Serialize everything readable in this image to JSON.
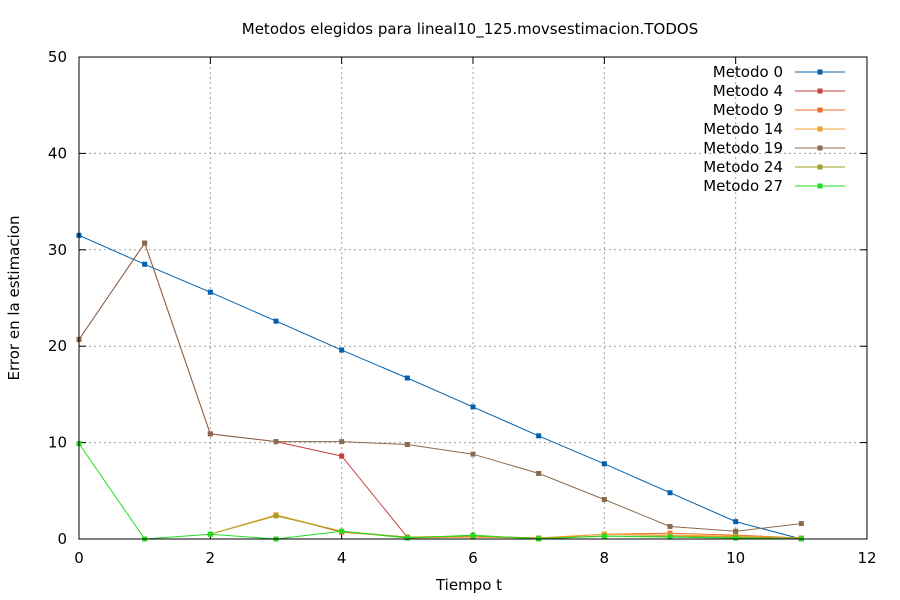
{
  "chart_data": {
    "type": "line",
    "title": "Metodos elegidos para lineal10_125.movsestimacion.TODOS",
    "xlabel": "Tiempo t",
    "ylabel": "Error en la estimacion",
    "xlim": [
      0,
      12
    ],
    "ylim": [
      0,
      50
    ],
    "xticks": [
      0,
      2,
      4,
      6,
      8,
      10,
      12
    ],
    "yticks": [
      0,
      10,
      20,
      30,
      40,
      50
    ],
    "grid": true,
    "legend_position": "top-right",
    "series": [
      {
        "name": "Metodo 0",
        "color": "#0060ad",
        "x": [
          0,
          1,
          2,
          3,
          4,
          5,
          6,
          7,
          8,
          9,
          10,
          11
        ],
        "y": [
          31.5,
          28.5,
          25.6,
          22.6,
          19.6,
          16.7,
          13.7,
          10.7,
          7.8,
          4.8,
          1.8,
          0
        ]
      },
      {
        "name": "Metodo 4",
        "color": "#c8413f",
        "x": [
          0,
          1,
          2,
          3,
          4,
          5
        ],
        "y": [
          20.7,
          30.7,
          10.9,
          10.1,
          8.6,
          0.2
        ]
      },
      {
        "name": "Metodo 9",
        "color": "#ee6c2a",
        "x": [
          3,
          4,
          5,
          6,
          7,
          8,
          9,
          10,
          11
        ],
        "y": [
          2.5,
          0.7,
          0.2,
          0.3,
          0.1,
          0.5,
          0.6,
          0.4,
          0.1
        ]
      },
      {
        "name": "Metodo 14",
        "color": "#f5a030",
        "x": [
          2,
          3,
          4,
          5,
          6,
          7,
          8,
          9,
          10,
          11
        ],
        "y": [
          0.5,
          2.5,
          0.8,
          0.1,
          0.2,
          0.1,
          0.5,
          0.4,
          0.3,
          0.1
        ]
      },
      {
        "name": "Metodo 19",
        "color": "#8b6b4f",
        "x": [
          0,
          1,
          2,
          3,
          4,
          5,
          6,
          7,
          8,
          9,
          10,
          11
        ],
        "y": [
          20.7,
          30.7,
          10.9,
          10.1,
          10.1,
          9.8,
          8.8,
          6.8,
          4.1,
          1.3,
          0.8,
          1.6
        ]
      },
      {
        "name": "Metodo 24",
        "color": "#a0a020",
        "x": [
          2,
          3,
          4,
          5,
          6,
          7,
          8,
          9,
          10,
          11
        ],
        "y": [
          0.5,
          2.4,
          0.8,
          0.2,
          0.3,
          0.1,
          0.3,
          0.3,
          0.2,
          0.1
        ]
      },
      {
        "name": "Metodo 27",
        "color": "#22dd22",
        "x": [
          0,
          1,
          2,
          3,
          4,
          5,
          6,
          7,
          8,
          9,
          10,
          11
        ],
        "y": [
          9.9,
          0,
          0.5,
          0,
          0.8,
          0.1,
          0.4,
          0,
          0.3,
          0.2,
          0.1,
          0
        ]
      }
    ]
  }
}
